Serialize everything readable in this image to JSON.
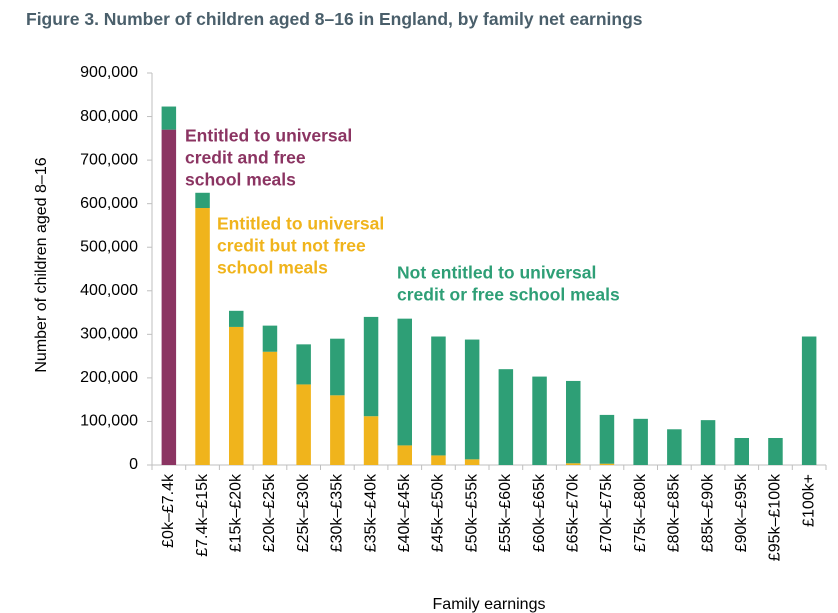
{
  "title": "Figure 3. Number of children aged 8–16 in England, by family net earnings",
  "colors": {
    "fsm": "#8b3462",
    "uc_only": "#f0b41c",
    "neither": "#2e9f76",
    "axis": "#bfbfbf"
  },
  "chart_data": {
    "type": "bar",
    "stacked": true,
    "xlabel": "Family earnings",
    "ylabel": "Number of children aged 8–16",
    "ylim": [
      0,
      900000
    ],
    "yticks": [
      "0",
      "100,000",
      "200,000",
      "300,000",
      "400,000",
      "500,000",
      "600,000",
      "700,000",
      "800,000",
      "900,000"
    ],
    "grid": false,
    "categories": [
      "£0k–£7.4k",
      "£7.4k–£15k",
      "£15k–£20k",
      "£20k–£25k",
      "£25k–£30k",
      "£30k–£35k",
      "£35k–£40k",
      "£40k–£45k",
      "£45k–£50k",
      "£50k–£55k",
      "£55k–£60k",
      "£60k–£65k",
      "£65k–£70k",
      "£70k–£75k",
      "£75k–£80k",
      "£80k–£85k",
      "£85k–£90k",
      "£90k–£95k",
      "£95k–£100k",
      "£100k+"
    ],
    "series": [
      {
        "name": "Entitled to universal credit and free school meals",
        "color_key": "fsm",
        "values": [
          770000,
          0,
          0,
          0,
          0,
          0,
          0,
          0,
          0,
          0,
          0,
          0,
          0,
          0,
          0,
          0,
          0,
          0,
          0,
          0
        ]
      },
      {
        "name": "Entitled to universal credit but not free school meals",
        "color_key": "uc_only",
        "values": [
          0,
          590000,
          317000,
          260000,
          185000,
          160000,
          112000,
          45000,
          22000,
          13000,
          0,
          0,
          4000,
          3000,
          0,
          0,
          0,
          0,
          0,
          0
        ]
      },
      {
        "name": "Not entitled to universal credit or free school meals",
        "color_key": "neither",
        "values": [
          53000,
          35000,
          37000,
          60000,
          92000,
          130000,
          228000,
          291000,
          273000,
          275000,
          220000,
          203000,
          189000,
          112000,
          106000,
          82000,
          103000,
          62000,
          62000,
          295000
        ]
      }
    ],
    "annotations": [
      {
        "lines": [
          "Entitled to universal",
          "credit and free",
          "school meals"
        ],
        "color_key": "fsm"
      },
      {
        "lines": [
          "Entitled to universal",
          "credit but not free",
          "school meals"
        ],
        "color_key": "uc_only"
      },
      {
        "lines": [
          "Not entitled to universal",
          "credit or free school meals"
        ],
        "color_key": "neither"
      }
    ]
  }
}
